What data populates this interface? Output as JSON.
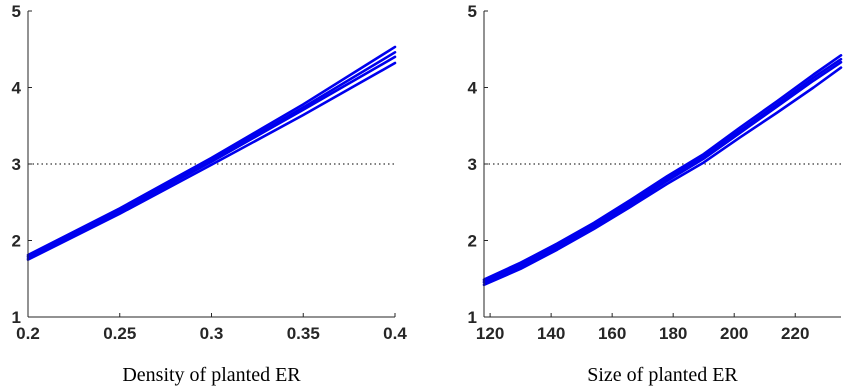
{
  "chart_data": [
    {
      "type": "line",
      "title": "",
      "xlabel": "Density of planted ER",
      "ylabel": "",
      "xlim": [
        0.2,
        0.4
      ],
      "ylim": [
        1,
        5
      ],
      "xticks": [
        0.2,
        0.25,
        0.3,
        0.35,
        0.4
      ],
      "xtick_labels": [
        "0.2",
        "0.25",
        "0.3",
        "0.35",
        "0.4"
      ],
      "yticks": [
        1,
        2,
        3,
        4,
        5
      ],
      "ytick_labels": [
        "1",
        "2",
        "3",
        "4",
        "5"
      ],
      "reference_line": {
        "y": 3,
        "style": "dotted"
      },
      "grid": false,
      "x": [
        0.2,
        0.25,
        0.3,
        0.35,
        0.4
      ],
      "series": [
        {
          "values": [
            1.81,
            2.42,
            3.08,
            3.78,
            4.53
          ]
        },
        {
          "values": [
            1.79,
            2.4,
            3.05,
            3.74,
            4.46
          ]
        },
        {
          "values": [
            1.77,
            2.38,
            3.03,
            3.71,
            4.4
          ]
        },
        {
          "values": [
            1.75,
            2.35,
            2.99,
            3.64,
            4.32
          ]
        }
      ]
    },
    {
      "type": "line",
      "title": "",
      "xlabel": "Size of planted ER",
      "ylabel": "",
      "xlim": [
        118,
        235
      ],
      "ylim": [
        1,
        5
      ],
      "xticks": [
        120,
        140,
        160,
        180,
        200,
        220
      ],
      "xtick_labels": [
        "120",
        "140",
        "160",
        "180",
        "200",
        "220"
      ],
      "yticks": [
        1,
        2,
        3,
        4,
        5
      ],
      "ytick_labels": [
        "1",
        "2",
        "3",
        "4",
        "5"
      ],
      "reference_line": {
        "y": 3,
        "style": "dotted"
      },
      "grid": false,
      "x": [
        118,
        130,
        142,
        154,
        166,
        178,
        190,
        202,
        214,
        226,
        235
      ],
      "series": [
        {
          "values": [
            1.49,
            1.71,
            1.96,
            2.23,
            2.53,
            2.84,
            3.13,
            3.48,
            3.82,
            4.17,
            4.42
          ]
        },
        {
          "values": [
            1.47,
            1.68,
            1.93,
            2.2,
            2.5,
            2.81,
            3.1,
            3.44,
            3.78,
            4.13,
            4.37
          ]
        },
        {
          "values": [
            1.45,
            1.66,
            1.91,
            2.18,
            2.47,
            2.78,
            3.07,
            3.41,
            3.75,
            4.09,
            4.33
          ]
        },
        {
          "values": [
            1.42,
            1.63,
            1.88,
            2.15,
            2.44,
            2.74,
            3.02,
            3.35,
            3.67,
            4.0,
            4.26
          ]
        }
      ]
    }
  ],
  "colors": {
    "series": "#0000ee",
    "reference_line": "#000000",
    "axis": "#262626"
  }
}
